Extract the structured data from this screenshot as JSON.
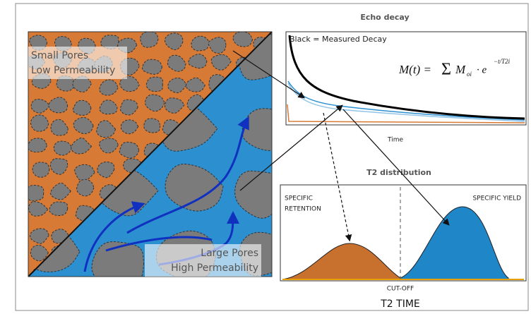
{
  "left_panel": {
    "top_label": [
      "Small Pores",
      "Low Permeability"
    ],
    "bottom_label": [
      "Large Pores",
      "High Permeability"
    ]
  },
  "echo_decay": {
    "title": "Echo decay",
    "legend": "Black = Measured Decay",
    "x_label": "Time",
    "formula": {
      "lhs": "M(t) =",
      "sum": "Σ",
      "term": "M",
      "sub": "oi",
      "mid": "· e",
      "exp": "−t/T2i"
    }
  },
  "t2_distribution": {
    "title": "T2 distribution",
    "left_label": [
      "SPECIFIC",
      "RETENTION"
    ],
    "right_label": "SPECIFIC YIELD",
    "cutoff": "CUT-OFF",
    "x_label": "T2 TIME"
  }
}
